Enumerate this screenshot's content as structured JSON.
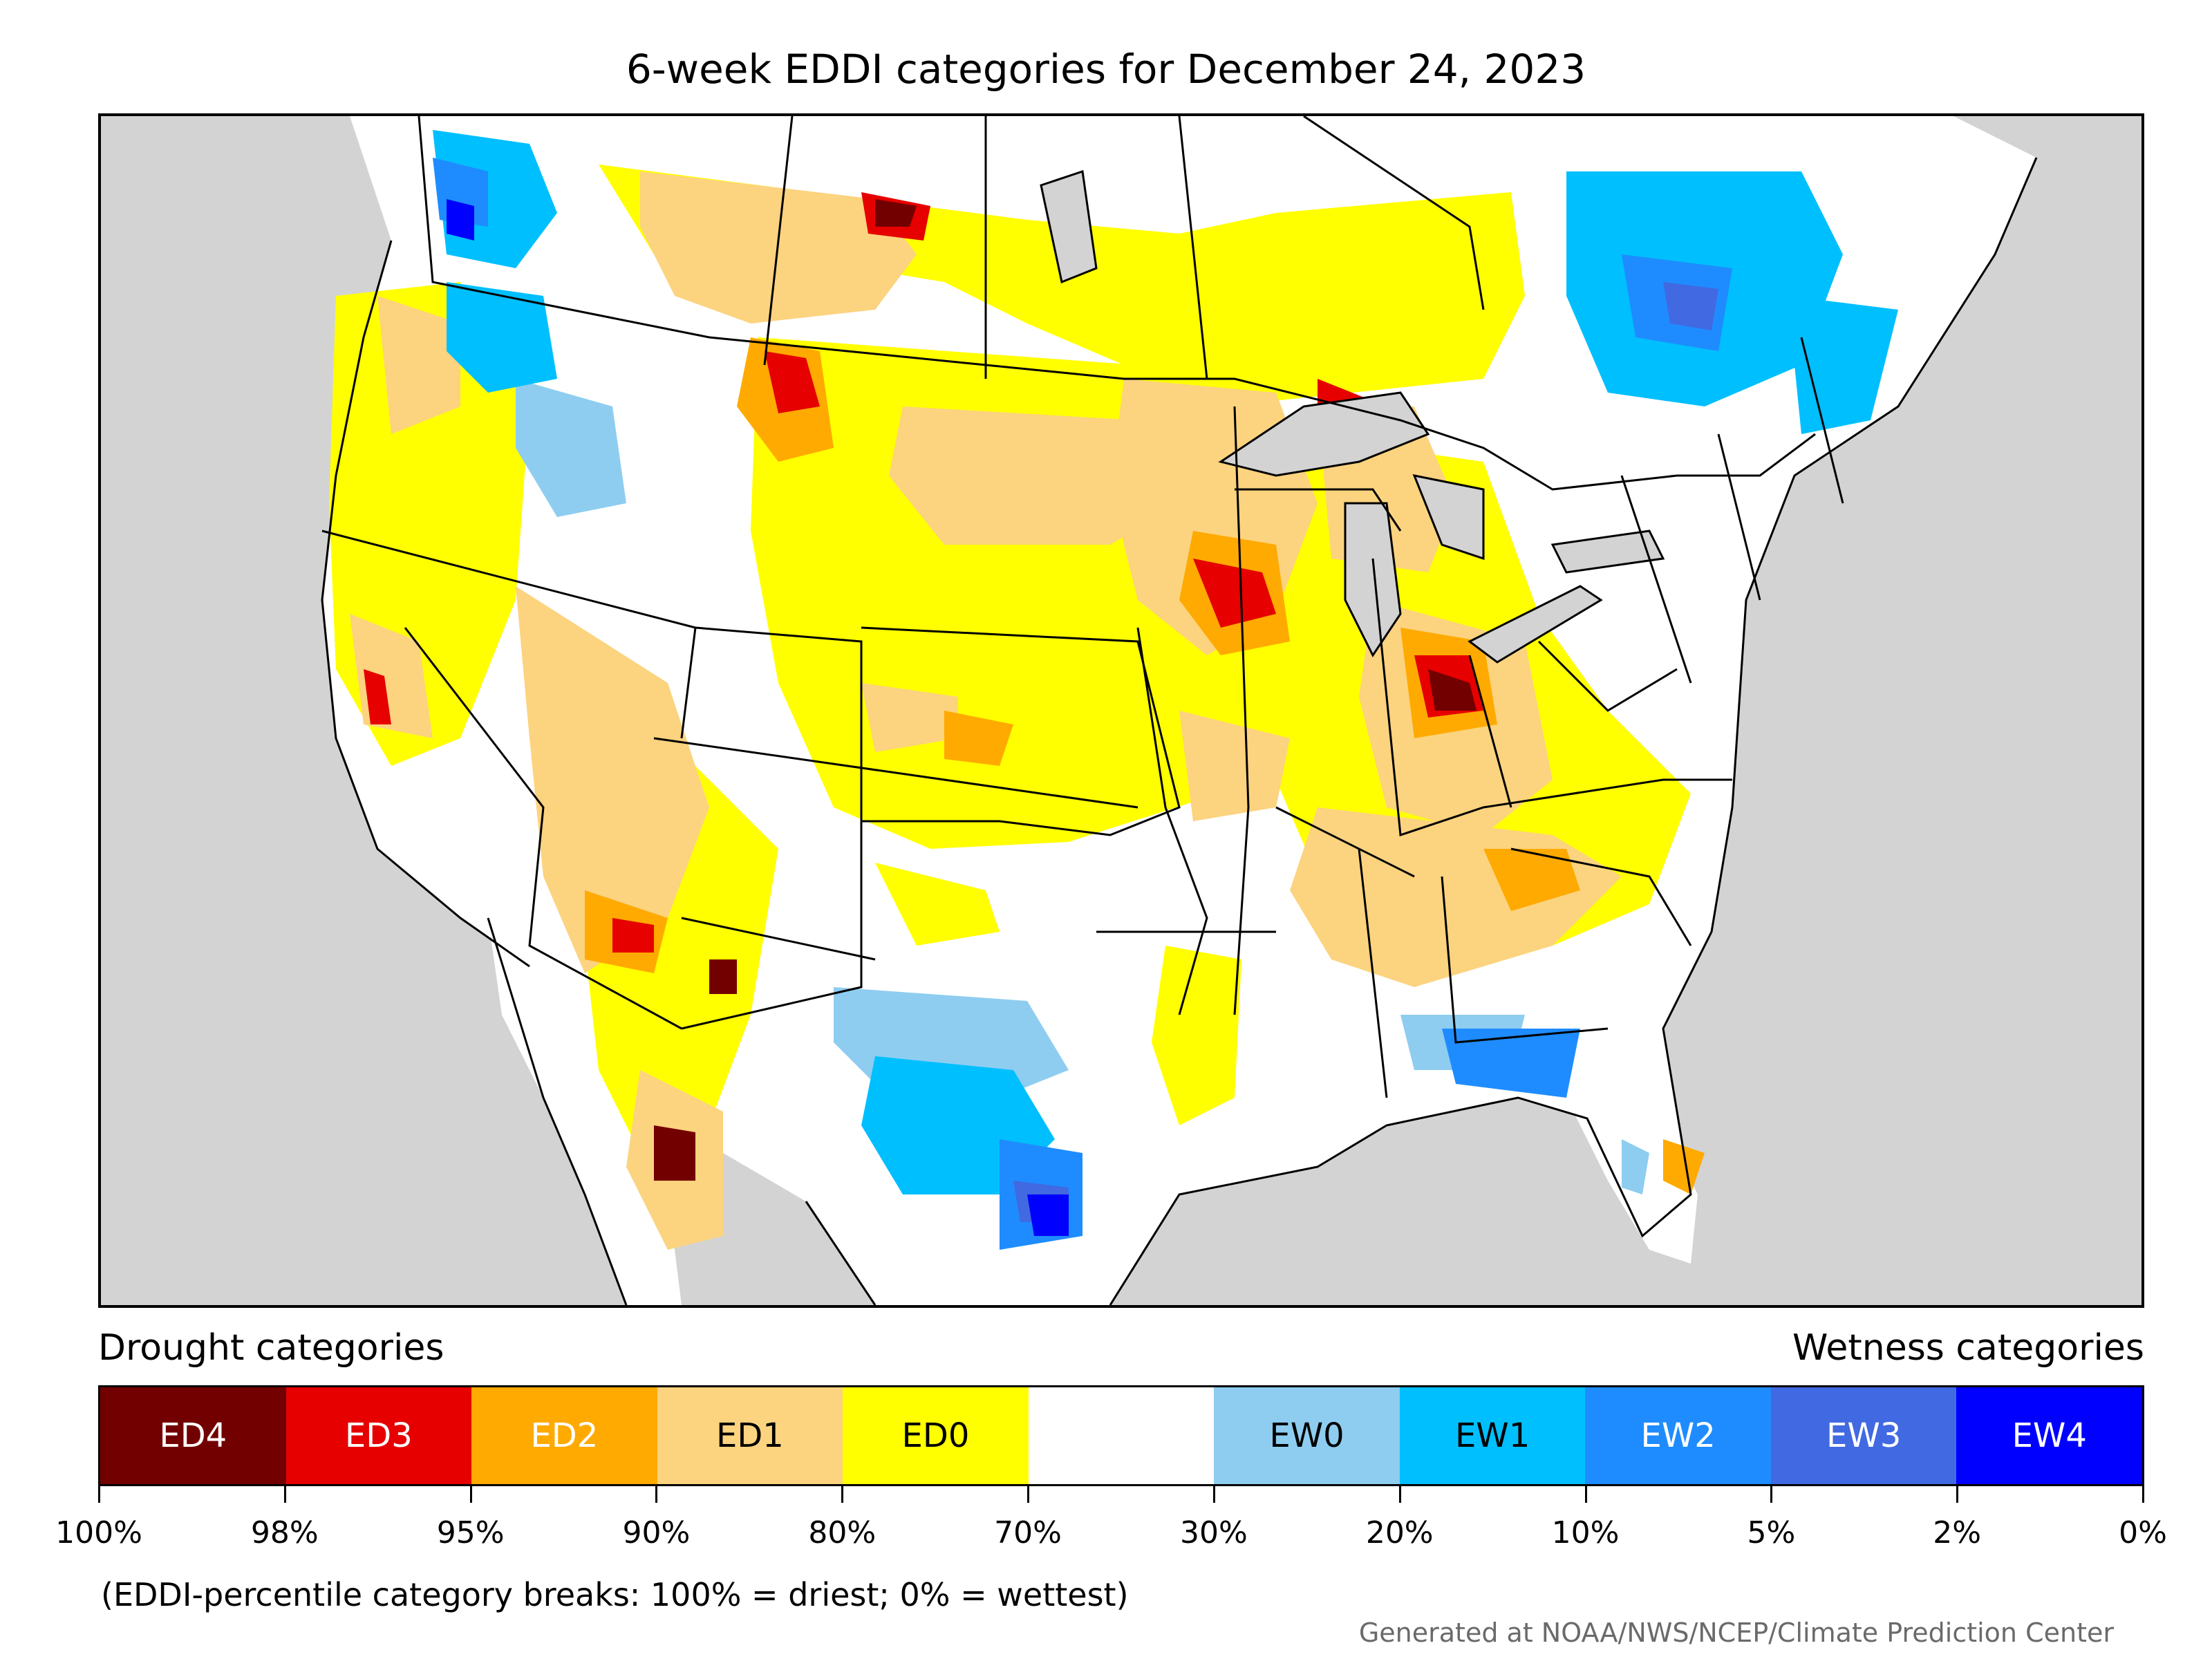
{
  "title": "6-week EDDI categories for December 24, 2023",
  "legend": {
    "drought_heading": "Drought categories",
    "wetness_heading": "Wetness categories",
    "categories": [
      {
        "label": "ED4",
        "color": "#730000",
        "text_color": "#ffffff"
      },
      {
        "label": "ED3",
        "color": "#e60000",
        "text_color": "#ffffff"
      },
      {
        "label": "ED2",
        "color": "#ffaa00",
        "text_color": "#ffffff"
      },
      {
        "label": "ED1",
        "color": "#fcd37f",
        "text_color": "#000000"
      },
      {
        "label": "ED0",
        "color": "#ffff00",
        "text_color": "#000000"
      },
      {
        "label": "",
        "color": "#ffffff",
        "text_color": "#000000"
      },
      {
        "label": "EW0",
        "color": "#8ecdf0",
        "text_color": "#000000"
      },
      {
        "label": "EW1",
        "color": "#00bfff",
        "text_color": "#000000"
      },
      {
        "label": "EW2",
        "color": "#1e8cff",
        "text_color": "#ffffff"
      },
      {
        "label": "EW3",
        "color": "#4169e1",
        "text_color": "#ffffff"
      },
      {
        "label": "EW4",
        "color": "#0000ff",
        "text_color": "#ffffff"
      }
    ],
    "breaks": [
      "100%",
      "98%",
      "95%",
      "90%",
      "80%",
      "70%",
      "30%",
      "20%",
      "10%",
      "5%",
      "2%",
      "0%"
    ]
  },
  "note": "(EDDI-percentile category breaks: 100% = driest; 0% = wettest)",
  "credit": "Generated at NOAA/NWS/NCEP/Climate Prediction Center"
}
